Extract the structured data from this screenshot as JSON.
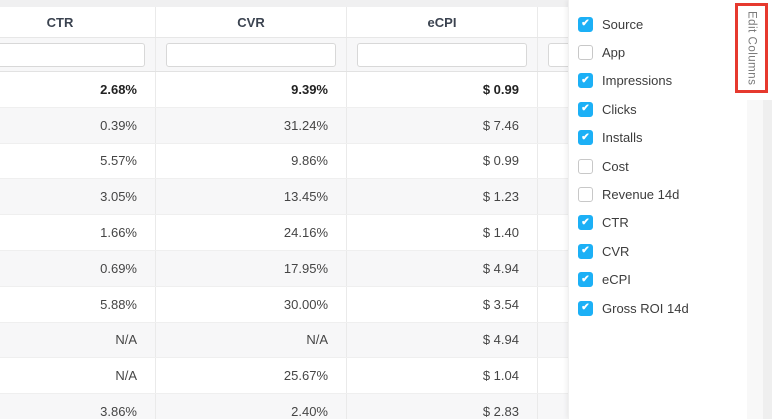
{
  "colors": {
    "checkbox_blue": "#1cb0f6",
    "annotation_red": "#e6392e"
  },
  "table": {
    "columns": [
      {
        "label": "CTR"
      },
      {
        "label": "CVR"
      },
      {
        "label": "eCPI"
      },
      {
        "label": ""
      }
    ],
    "rows": [
      {
        "ctr": "2.68%",
        "cvr": "9.39%",
        "ecpi": "$ 0.99"
      },
      {
        "ctr": "0.39%",
        "cvr": "31.24%",
        "ecpi": "$ 7.46"
      },
      {
        "ctr": "5.57%",
        "cvr": "9.86%",
        "ecpi": "$ 0.99"
      },
      {
        "ctr": "3.05%",
        "cvr": "13.45%",
        "ecpi": "$ 1.23"
      },
      {
        "ctr": "1.66%",
        "cvr": "24.16%",
        "ecpi": "$ 1.40"
      },
      {
        "ctr": "0.69%",
        "cvr": "17.95%",
        "ecpi": "$ 4.94"
      },
      {
        "ctr": "5.88%",
        "cvr": "30.00%",
        "ecpi": "$ 3.54"
      },
      {
        "ctr": "N/A",
        "cvr": "N/A",
        "ecpi": "$ 4.94"
      },
      {
        "ctr": "N/A",
        "cvr": "25.67%",
        "ecpi": "$ 1.04"
      },
      {
        "ctr": "3.86%",
        "cvr": "2.40%",
        "ecpi": "$ 2.83"
      }
    ]
  },
  "edit_columns_panel": {
    "items": [
      {
        "label": "Source",
        "checked": true
      },
      {
        "label": "App",
        "checked": false
      },
      {
        "label": "Impressions",
        "checked": true
      },
      {
        "label": "Clicks",
        "checked": true
      },
      {
        "label": "Installs",
        "checked": true
      },
      {
        "label": "Cost",
        "checked": false
      },
      {
        "label": "Revenue 14d",
        "checked": false
      },
      {
        "label": "CTR",
        "checked": true
      },
      {
        "label": "CVR",
        "checked": true
      },
      {
        "label": "eCPI",
        "checked": true
      },
      {
        "label": "Gross ROI 14d",
        "checked": true
      }
    ]
  },
  "edit_columns_button": {
    "label": "Edit Columns"
  }
}
